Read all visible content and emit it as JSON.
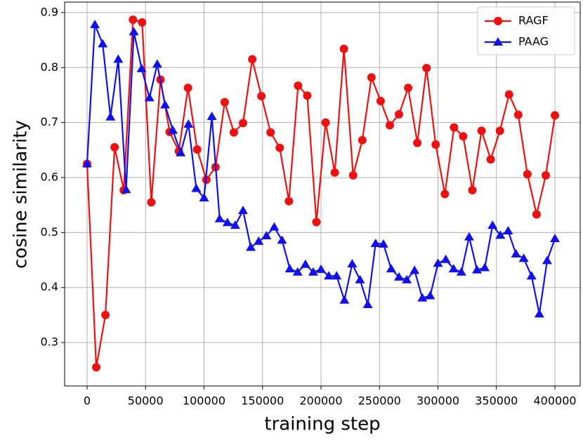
{
  "chart_data": {
    "type": "line",
    "xlabel": "training step",
    "ylabel": "cosine similarity",
    "xlim": [
      -19200,
      421600
    ],
    "ylim": [
      0.221,
      0.919
    ],
    "xticks": [
      0,
      50000,
      100000,
      150000,
      200000,
      250000,
      300000,
      350000,
      400000
    ],
    "yticks": [
      0.3,
      0.4,
      0.5,
      0.6,
      0.7,
      0.8,
      0.9
    ],
    "grid": true,
    "legend": "upper right",
    "series": [
      {
        "name": "RAGF",
        "color": "#ee1111",
        "marker": "circle",
        "x": [
          0,
          7843,
          15686,
          23529,
          31373,
          39216,
          47059,
          54902,
          62745,
          70588,
          78431,
          86275,
          94118,
          101961,
          109804,
          117647,
          125490,
          133333,
          141176,
          149020,
          156863,
          164706,
          172549,
          180392,
          188235,
          196078,
          203922,
          211765,
          219608,
          227451,
          235294,
          243137,
          250980,
          258824,
          266667,
          274510,
          282353,
          290196,
          298039,
          305882,
          313725,
          321569,
          329412,
          337255,
          345098,
          352941,
          360784,
          368627,
          376471,
          384314,
          392157,
          400000
        ],
        "values": [
          0.625,
          0.255,
          0.35,
          0.655,
          0.577,
          0.887,
          0.882,
          0.555,
          0.778,
          0.683,
          0.648,
          0.763,
          0.651,
          0.596,
          0.619,
          0.737,
          0.682,
          0.699,
          0.815,
          0.748,
          0.682,
          0.654,
          0.557,
          0.767,
          0.749,
          0.519,
          0.7,
          0.609,
          0.834,
          0.604,
          0.668,
          0.782,
          0.739,
          0.695,
          0.715,
          0.763,
          0.663,
          0.799,
          0.66,
          0.57,
          0.691,
          0.675,
          0.577,
          0.685,
          0.633,
          0.685,
          0.751,
          0.714,
          0.606,
          0.533,
          0.604,
          0.713
        ]
      },
      {
        "name": "PAAG",
        "color": "#1111ee",
        "marker": "triangle",
        "x": [
          0,
          6667,
          13333,
          20000,
          26667,
          33333,
          40000,
          46667,
          53333,
          60000,
          66667,
          73333,
          80000,
          86667,
          93333,
          100000,
          106667,
          113333,
          120000,
          126667,
          133333,
          140000,
          146667,
          153333,
          160000,
          166667,
          173333,
          180000,
          186667,
          193333,
          200000,
          206667,
          213333,
          220000,
          226667,
          233333,
          240000,
          246667,
          253333,
          260000,
          266667,
          273333,
          280000,
          286667,
          293333,
          300000,
          306667,
          313333,
          320000,
          326667,
          333333,
          340000,
          346667,
          353333,
          360000,
          366667,
          373333,
          380000,
          386667,
          393333,
          400000
        ],
        "values": [
          0.625,
          0.878,
          0.843,
          0.71,
          0.815,
          0.578,
          0.865,
          0.798,
          0.745,
          0.806,
          0.732,
          0.686,
          0.645,
          0.697,
          0.58,
          0.563,
          0.711,
          0.525,
          0.518,
          0.513,
          0.54,
          0.473,
          0.484,
          0.494,
          0.51,
          0.486,
          0.434,
          0.428,
          0.442,
          0.428,
          0.433,
          0.421,
          0.421,
          0.377,
          0.443,
          0.414,
          0.369,
          0.48,
          0.479,
          0.434,
          0.419,
          0.414,
          0.431,
          0.381,
          0.385,
          0.444,
          0.451,
          0.434,
          0.428,
          0.492,
          0.432,
          0.436,
          0.513,
          0.495,
          0.503,
          0.461,
          0.453,
          0.421,
          0.352,
          0.449,
          0.489
        ]
      }
    ]
  }
}
